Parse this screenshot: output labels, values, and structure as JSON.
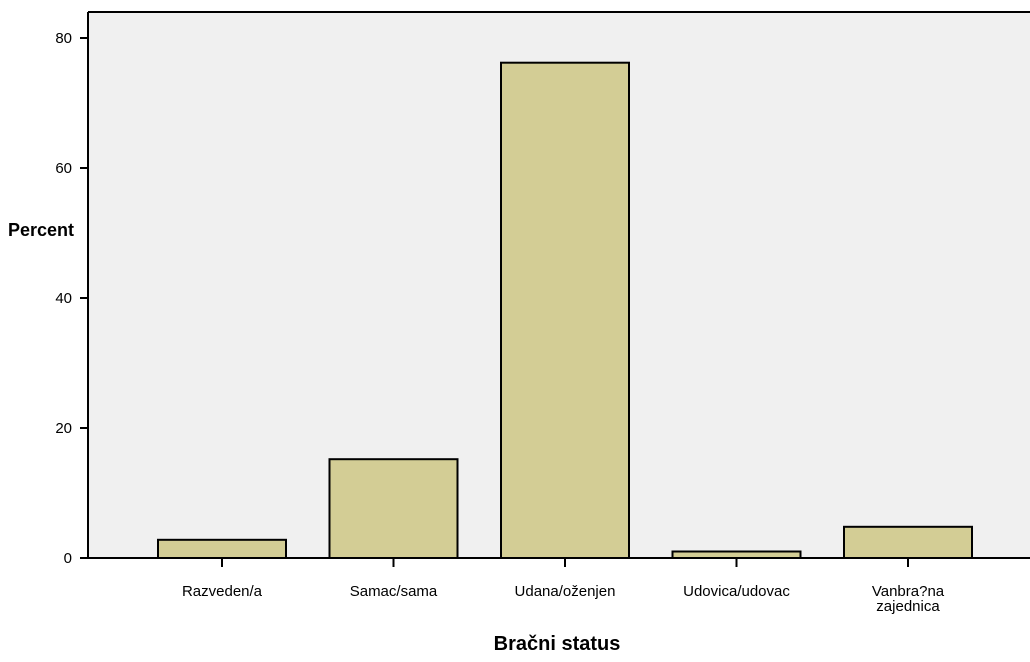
{
  "chart_data": {
    "type": "bar",
    "categories": [
      [
        "Razveden/a"
      ],
      [
        "Samac/sama"
      ],
      [
        "Udana/oženjen"
      ],
      [
        "Udovica/udovac"
      ],
      [
        "Vanbra?na",
        "zajednica"
      ]
    ],
    "values": [
      2.8,
      15.2,
      76.2,
      1.0,
      4.8
    ],
    "xlabel": "Bračni status",
    "ylabel": "Percent",
    "ylim": [
      0,
      80
    ],
    "yticks": [
      0,
      20,
      40,
      60,
      80
    ],
    "grid": false,
    "legend": "none",
    "colors": {
      "bar_fill": "#d3cd95",
      "bar_stroke": "#000000",
      "plot_background": "#f0f0f0",
      "page_background": "#ffffff"
    }
  }
}
